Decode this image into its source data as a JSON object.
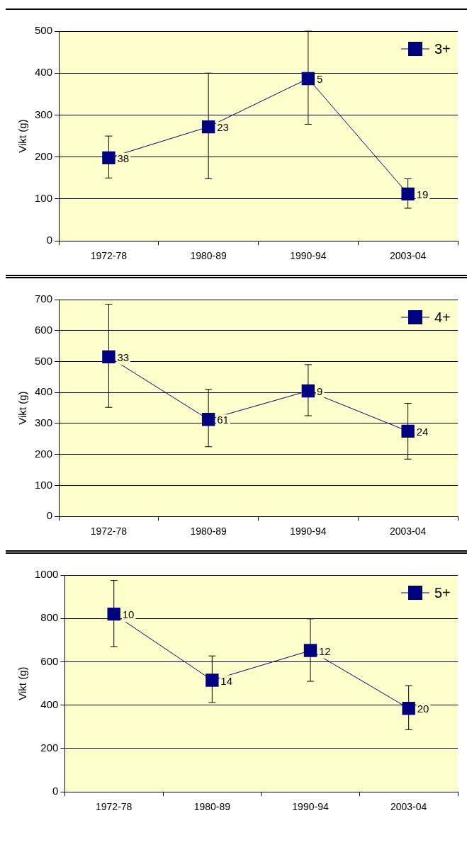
{
  "chart_data": [
    {
      "type": "line",
      "ylabel": "Vikt (g)",
      "categories": [
        "1972-78",
        "1980-89",
        "1990-94",
        "2003-04"
      ],
      "ylim": [
        0,
        500
      ],
      "yticks": [
        0,
        100,
        200,
        300,
        400,
        500
      ],
      "grid": "y",
      "legend": "top right",
      "marker": "square",
      "line_style": "solid",
      "series": [
        {
          "name": "3+",
          "color": "#000080",
          "values": [
            198,
            272,
            387,
            112
          ],
          "errors": [
            [
              150,
              250
            ],
            [
              148,
              400
            ],
            [
              278,
              500
            ],
            [
              78,
              148
            ]
          ]
        }
      ],
      "annotations": [
        {
          "text": "38",
          "x": "1972-78",
          "y": 198
        },
        {
          "text": "23",
          "x": "1980-89",
          "y": 272
        },
        {
          "text": "5",
          "x": "1990-94",
          "y": 387
        },
        {
          "text": "19",
          "x": "2003-04",
          "y": 112
        }
      ]
    },
    {
      "type": "line",
      "ylabel": "Vikt (g)",
      "categories": [
        "1972-78",
        "1980-89",
        "1990-94",
        "2003-04"
      ],
      "ylim": [
        0,
        700
      ],
      "yticks": [
        0,
        100,
        200,
        300,
        400,
        500,
        600,
        700
      ],
      "grid": "y",
      "legend": "top right",
      "marker": "square",
      "line_style": "solid",
      "series": [
        {
          "name": "4+",
          "color": "#000080",
          "values": [
            515,
            313,
            405,
            275
          ],
          "errors": [
            [
              352,
              685
            ],
            [
              225,
              410
            ],
            [
              325,
              490
            ],
            [
              185,
              365
            ]
          ]
        }
      ],
      "annotations": [
        {
          "text": "33",
          "x": "1972-78",
          "y": 515
        },
        {
          "text": "61",
          "x": "1980-89",
          "y": 313
        },
        {
          "text": "9",
          "x": "1990-94",
          "y": 405
        },
        {
          "text": "24",
          "x": "2003-04",
          "y": 275
        }
      ]
    },
    {
      "type": "line",
      "ylabel": "Vikt (g)",
      "categories": [
        "1972-78",
        "1980-89",
        "1990-94",
        "2003-04"
      ],
      "ylim": [
        0,
        1000
      ],
      "yticks": [
        0,
        200,
        400,
        600,
        800,
        1000
      ],
      "grid": "y",
      "legend": "top right",
      "marker": "square",
      "line_style": "solid",
      "series": [
        {
          "name": "5+",
          "color": "#000080",
          "values": [
            820,
            515,
            652,
            385
          ],
          "errors": [
            [
              670,
              975
            ],
            [
              412,
              627
            ],
            [
              510,
              798
            ],
            [
              287,
              490
            ]
          ]
        }
      ],
      "annotations": [
        {
          "text": "10",
          "x": "1972-78",
          "y": 820
        },
        {
          "text": "14",
          "x": "1980-89",
          "y": 515
        },
        {
          "text": "12",
          "x": "1990-94",
          "y": 652
        },
        {
          "text": "20",
          "x": "2003-04",
          "y": 385
        }
      ]
    }
  ]
}
